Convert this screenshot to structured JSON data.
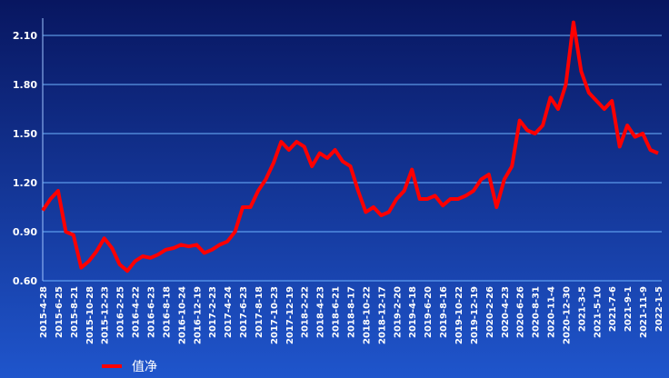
{
  "chart_data": {
    "type": "line",
    "categories": [
      "2015-4-28",
      null,
      "2015-6-25",
      null,
      "2015-8-21",
      null,
      "2015-10-28",
      null,
      "2015-12-23",
      null,
      "2016-2-25",
      null,
      "2016-4-22",
      null,
      "2016-6-23",
      null,
      "2016-8-18",
      null,
      "2016-10-24",
      null,
      "2016-12-19",
      null,
      "2017-2-23",
      null,
      "2017-4-24",
      null,
      "2017-6-23",
      null,
      "2017-8-18",
      null,
      "2017-10-23",
      null,
      "2017-12-19",
      null,
      "2018-2-22",
      null,
      "2018-4-23",
      null,
      "2018-6-21",
      null,
      "2018-8-17",
      null,
      "2018-10-22",
      null,
      "2018-12-17",
      null,
      "2019-2-20",
      null,
      "2019-4-18",
      null,
      "2019-6-20",
      null,
      "2019-8-16",
      null,
      "2019-10-22",
      null,
      "2019-12-19",
      null,
      "2020-2-26",
      null,
      "2020-4-23",
      null,
      "2020-6-26",
      null,
      "2020-8-31",
      null,
      "2020-11-4",
      null,
      "2020-12-30",
      null,
      "2021-3-5",
      null,
      "2021-5-10",
      null,
      "2021-7-6",
      null,
      "2021-9-1",
      null,
      "2021-11-9",
      null,
      "2022-1-5"
    ],
    "series": [
      {
        "name": "值净",
        "color": "#ff0000",
        "values": [
          1.03,
          1.1,
          1.15,
          0.9,
          0.88,
          0.68,
          0.72,
          0.78,
          0.86,
          0.8,
          0.7,
          0.66,
          0.72,
          0.75,
          0.74,
          0.76,
          0.79,
          0.8,
          0.82,
          0.81,
          0.82,
          0.77,
          0.79,
          0.82,
          0.84,
          0.9,
          1.05,
          1.05,
          1.15,
          1.22,
          1.32,
          1.45,
          1.4,
          1.45,
          1.42,
          1.3,
          1.38,
          1.35,
          1.4,
          1.33,
          1.3,
          1.15,
          1.02,
          1.05,
          1.0,
          1.02,
          1.1,
          1.15,
          1.28,
          1.1,
          1.1,
          1.12,
          1.06,
          1.1,
          1.1,
          1.12,
          1.15,
          1.22,
          1.25,
          1.05,
          1.22,
          1.3,
          1.58,
          1.52,
          1.5,
          1.55,
          1.72,
          1.65,
          1.8,
          2.18,
          1.88,
          1.75,
          1.7,
          1.65,
          1.7,
          1.42,
          1.55,
          1.48,
          1.5,
          1.4,
          1.38
        ]
      }
    ],
    "ylim": [
      0.6,
      2.2
    ],
    "yticks": [
      {
        "value": 0.6,
        "label": "0.60"
      },
      {
        "value": 0.9,
        "label": "0.90"
      },
      {
        "value": 1.2,
        "label": "1.20"
      },
      {
        "value": 1.5,
        "label": "1.50"
      },
      {
        "value": 1.8,
        "label": "1.80"
      },
      {
        "value": 2.1,
        "label": "2.10"
      }
    ],
    "grid": true,
    "legend": "bottom-left"
  }
}
